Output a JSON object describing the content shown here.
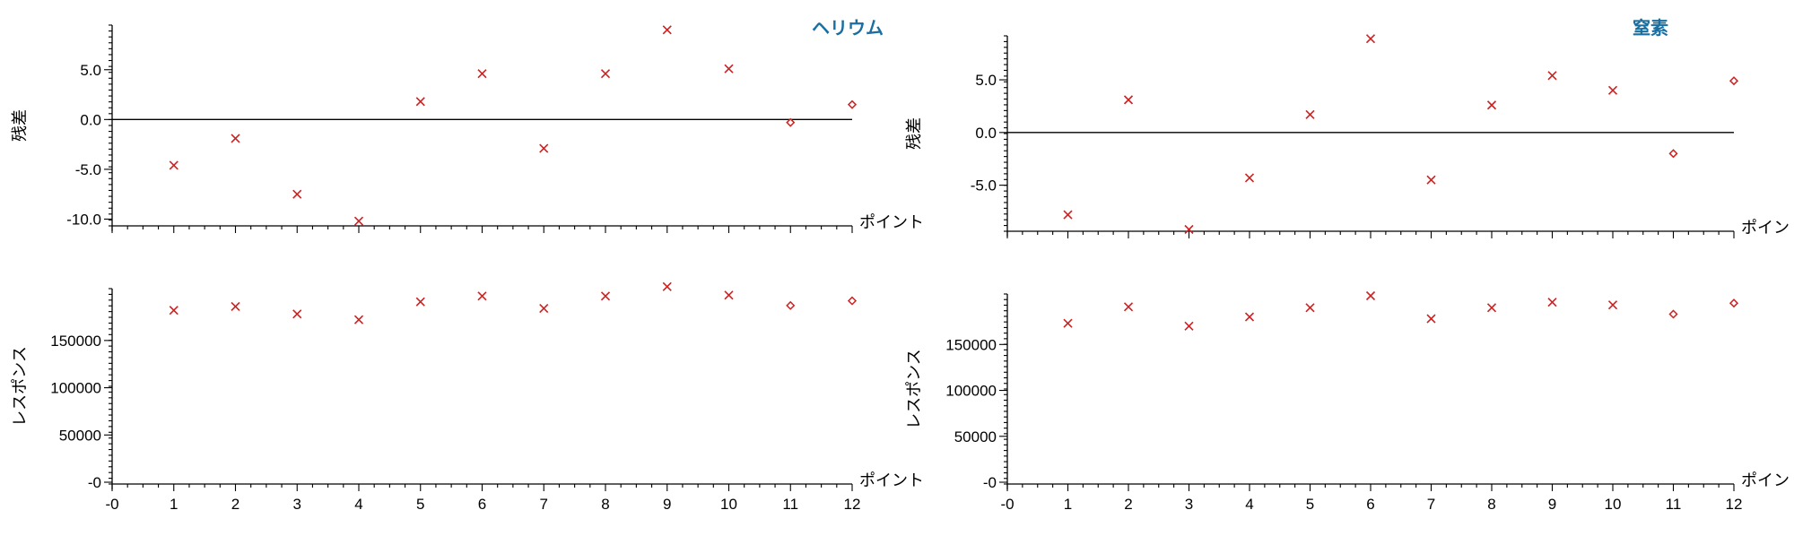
{
  "colors": {
    "marker": "#cc2222",
    "title": "#1a6fa0",
    "axis": "#000000"
  },
  "chart_data": [
    {
      "type": "scatter",
      "panel": "top-left",
      "title": "ヘリウム",
      "xlabel": "ポイント",
      "ylabel": "残差",
      "xlim": [
        0,
        12
      ],
      "ylim": [
        -10.5,
        9.3
      ],
      "yticks": [
        -10.0,
        -5.0,
        0.0,
        5.0
      ],
      "ytick_labels": [
        "-10.0",
        "-5.0",
        "0.0",
        "5.0"
      ],
      "xtick_labels": [],
      "zero_line": true,
      "series": [
        {
          "marker": "x",
          "x": [
            1,
            2,
            3,
            4,
            5,
            6,
            7,
            8,
            9,
            10
          ],
          "y": [
            -4.6,
            -1.9,
            -7.5,
            -10.2,
            1.8,
            4.6,
            -2.9,
            4.6,
            9.0,
            5.1
          ]
        },
        {
          "marker": "diamond",
          "x": [
            11,
            12
          ],
          "y": [
            -0.3,
            1.5
          ]
        }
      ]
    },
    {
      "type": "scatter",
      "panel": "bottom-left",
      "title": "",
      "xlabel": "ポイント",
      "ylabel": "レスポンス",
      "xlim": [
        0,
        12
      ],
      "ylim": [
        0,
        203000
      ],
      "yticks": [
        0,
        50000,
        100000,
        150000
      ],
      "ytick_labels": [
        "-0",
        "50000",
        "100000",
        "150000"
      ],
      "xtick_labels": [
        "-0",
        "1",
        "2",
        "3",
        "4",
        "5",
        "6",
        "7",
        "8",
        "9",
        "10",
        "11",
        "12"
      ],
      "zero_line": false,
      "series": [
        {
          "marker": "x",
          "x": [
            1,
            2,
            3,
            4,
            5,
            6,
            7,
            8,
            9,
            10
          ],
          "y": [
            182000,
            186000,
            178000,
            172000,
            191000,
            197000,
            184000,
            197000,
            207000,
            198000
          ]
        },
        {
          "marker": "diamond",
          "x": [
            11,
            12
          ],
          "y": [
            187000,
            192000
          ]
        }
      ]
    },
    {
      "type": "scatter",
      "panel": "top-right",
      "title": "窒素",
      "xlabel": "ポイント",
      "ylabel": "残差",
      "xlim": [
        0,
        12
      ],
      "ylim": [
        -9.2,
        9.0
      ],
      "yticks": [
        -5.0,
        0.0,
        5.0
      ],
      "ytick_labels": [
        "-5.0",
        "0.0",
        "5.0"
      ],
      "xtick_labels": [],
      "zero_line": true,
      "series": [
        {
          "marker": "x",
          "x": [
            1,
            2,
            3,
            4,
            5,
            6,
            7,
            8,
            9,
            10
          ],
          "y": [
            -7.8,
            3.1,
            -9.2,
            -4.3,
            1.7,
            8.9,
            -4.5,
            2.6,
            5.4,
            4.0
          ]
        },
        {
          "marker": "diamond",
          "x": [
            11,
            12
          ],
          "y": [
            -2.0,
            4.9
          ]
        }
      ]
    },
    {
      "type": "scatter",
      "panel": "bottom-right",
      "title": "",
      "xlabel": "ポイント",
      "ylabel": "レスポンス",
      "xlim": [
        0,
        12
      ],
      "ylim": [
        0,
        203000
      ],
      "yticks": [
        0,
        50000,
        100000,
        150000
      ],
      "ytick_labels": [
        "-0",
        "50000",
        "100000",
        "150000"
      ],
      "xtick_labels": [
        "-0",
        "1",
        "2",
        "3",
        "4",
        "5",
        "6",
        "7",
        "8",
        "9",
        "10",
        "11",
        "12"
      ],
      "zero_line": false,
      "series": [
        {
          "marker": "x",
          "x": [
            1,
            2,
            3,
            4,
            5,
            6,
            7,
            8,
            9,
            10
          ],
          "y": [
            173000,
            191000,
            170000,
            180000,
            190000,
            203000,
            178000,
            190000,
            196000,
            193000
          ]
        },
        {
          "marker": "diamond",
          "x": [
            11,
            12
          ],
          "y": [
            183000,
            195000
          ]
        }
      ]
    }
  ]
}
